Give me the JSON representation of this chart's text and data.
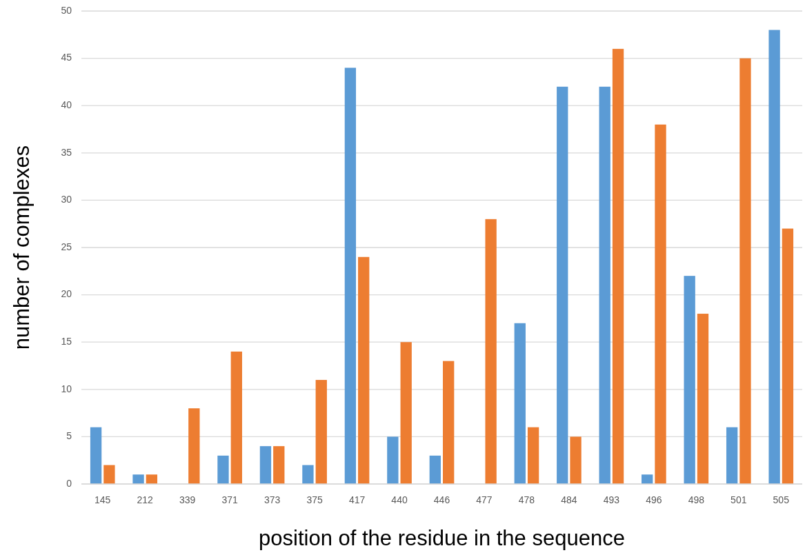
{
  "chart_data": {
    "type": "bar",
    "xlabel": "position of the residue in the sequence",
    "ylabel": "number of complexes",
    "categories": [
      "145",
      "212",
      "339",
      "371",
      "373",
      "375",
      "417",
      "440",
      "446",
      "477",
      "478",
      "484",
      "493",
      "496",
      "498",
      "501",
      "505"
    ],
    "series": [
      {
        "color": "#5b9bd5",
        "values": [
          6,
          1,
          0,
          3,
          4,
          2,
          44,
          5,
          3,
          0,
          17,
          42,
          42,
          1,
          22,
          6,
          48
        ]
      },
      {
        "color": "#ed7d31",
        "values": [
          2,
          1,
          8,
          14,
          4,
          11,
          24,
          15,
          13,
          28,
          6,
          5,
          46,
          38,
          18,
          45,
          27
        ]
      }
    ],
    "ylim": [
      0,
      50
    ],
    "yticks": [
      0,
      5,
      10,
      15,
      20,
      25,
      30,
      35,
      40,
      45,
      50
    ],
    "grid": "y"
  }
}
